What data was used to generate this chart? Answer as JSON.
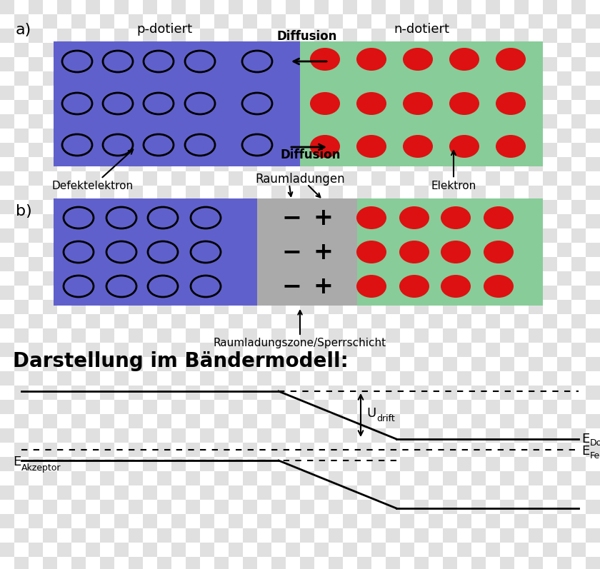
{
  "blue_color": "#6060cc",
  "green_color": "#88cc99",
  "gray_color": "#aaaaaa",
  "red_color": "#dd1111",
  "p_label": "p-dotiert",
  "n_label": "n-dotiert",
  "a_label": "a)",
  "b_label": "b)",
  "diffusion_top": "Diffusion",
  "diffusion_bot": "Diffusion",
  "defekt_label": "Defektelektron",
  "elektron_label": "Elektron",
  "raumladungen_label": "Raumladungen",
  "raumladungszone_label": "Raumladungszone/Sperrschicht",
  "band_title": "Darstellung im Bändermodell:",
  "checker_light": "#e0e0e0",
  "checker_dark": "#c0c0c0"
}
